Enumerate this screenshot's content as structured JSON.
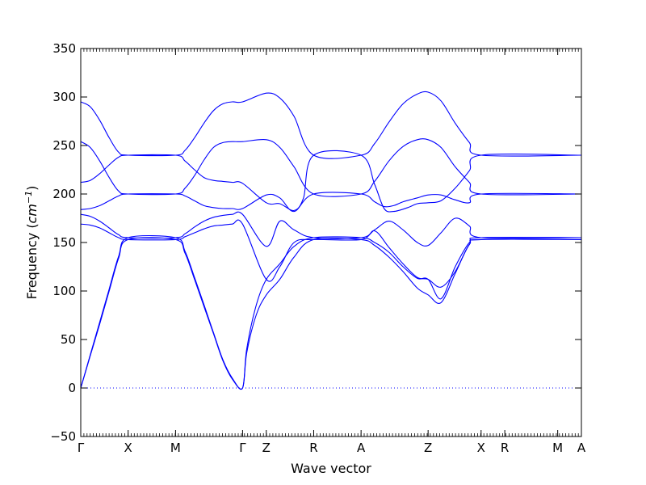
{
  "chart_data": {
    "type": "line",
    "title": "",
    "xlabel": "Wave vector",
    "ylabel_prefix": "Frequency (",
    "ylabel_unit_base": "cm",
    "ylabel_unit_exp": "−1",
    "ylabel_suffix": ")",
    "ylim": [
      -50,
      350
    ],
    "yticks": [
      -50,
      0,
      50,
      100,
      150,
      200,
      250,
      300,
      350
    ],
    "ytick_labels": [
      "−50",
      "0",
      "50",
      "100",
      "150",
      "200",
      "250",
      "300",
      "350"
    ],
    "grid": false,
    "line_color": "#0000ff",
    "zero_line": {
      "y": 0,
      "style": "dotted",
      "color": "#0000ff"
    },
    "high_symmetry_points": [
      {
        "label": "Γ",
        "x": 0
      },
      {
        "label": "X",
        "x": 0.5
      },
      {
        "label": "M",
        "x": 1.0
      },
      {
        "label": "Γ",
        "x": 1.707
      },
      {
        "label": "Z",
        "x": 1.957
      },
      {
        "label": "R",
        "x": 2.457
      },
      {
        "label": "A",
        "x": 2.957
      },
      {
        "label": "Z",
        "x": 3.664
      },
      {
        "label": "X",
        "x": 4.223
      },
      {
        "label": "R",
        "x": 4.473
      },
      {
        "label": "M",
        "x": 5.031
      },
      {
        "label": "A",
        "x": 5.281
      }
    ],
    "xlim": [
      0,
      5.281
    ],
    "series": [
      {
        "x": [
          0,
          0.1,
          0.2,
          0.3,
          0.4,
          0.5,
          1.0,
          1.1,
          1.2,
          1.3,
          1.4,
          1.5,
          1.6,
          1.707,
          1.957,
          2.1,
          2.25,
          2.457,
          2.957,
          3.1,
          3.25,
          3.4,
          3.55,
          3.664,
          3.8,
          3.95,
          4.1,
          4.223,
          5.281
        ],
        "y": [
          295,
          290,
          276,
          258,
          243,
          240,
          240,
          245,
          258,
          273,
          286,
          293,
          295,
          295,
          304,
          299,
          280,
          240,
          240,
          252,
          274,
          293,
          303,
          305,
          296,
          273,
          253,
          240,
          240
        ]
      },
      {
        "x": [
          0,
          0.1,
          0.2,
          0.3,
          0.4,
          0.5,
          1.0,
          1.1,
          1.2,
          1.3,
          1.4,
          1.5,
          1.6,
          1.707,
          1.957,
          2.1,
          2.25,
          2.457,
          2.957,
          3.1,
          3.25,
          3.4,
          3.55,
          3.664,
          3.8,
          3.95,
          4.1,
          4.223,
          5.281
        ],
        "y": [
          254,
          248,
          234,
          217,
          203,
          200,
          200,
          206,
          219,
          235,
          248,
          253,
          254,
          254,
          256,
          248,
          228,
          200,
          200,
          213,
          234,
          249,
          256,
          256,
          248,
          228,
          212,
          200,
          200
        ]
      },
      {
        "x": [
          0,
          0.1,
          0.2,
          0.3,
          0.4,
          0.5,
          1.0,
          1.1,
          1.2,
          1.3,
          1.4,
          1.5,
          1.6,
          1.707,
          1.957,
          2.1,
          2.25,
          2.35,
          2.457,
          2.957,
          3.1,
          3.2,
          3.3,
          3.45,
          3.55,
          3.664,
          3.8,
          3.95,
          4.1,
          4.223,
          5.281
        ],
        "y": [
          212,
          214,
          221,
          230,
          238,
          240,
          240,
          234,
          225,
          217,
          214,
          213,
          212,
          211,
          191,
          190,
          183,
          196,
          240,
          240,
          210,
          185,
          182,
          186,
          190,
          191,
          193,
          206,
          224,
          240,
          240
        ]
      },
      {
        "x": [
          0,
          0.1,
          0.2,
          0.3,
          0.4,
          0.5,
          1.0,
          1.1,
          1.2,
          1.3,
          1.4,
          1.5,
          1.6,
          1.707,
          1.957,
          2.1,
          2.25,
          2.457,
          2.957,
          3.1,
          3.2,
          3.3,
          3.4,
          3.55,
          3.664,
          3.8,
          3.95,
          4.1,
          4.223,
          5.281
        ],
        "y": [
          184,
          185,
          188,
          193,
          198,
          200,
          200,
          198,
          193,
          188,
          186,
          185,
          185,
          185,
          199,
          196,
          182,
          200,
          200,
          192,
          187,
          188,
          192,
          196,
          199,
          199,
          194,
          191,
          200,
          200
        ]
      },
      {
        "x": [
          0,
          0.1,
          0.2,
          0.3,
          0.4,
          0.5,
          1.0,
          1.1,
          1.2,
          1.3,
          1.4,
          1.5,
          1.6,
          1.707,
          1.957,
          2.1,
          2.25,
          2.457,
          2.957,
          3.1,
          3.25,
          3.4,
          3.55,
          3.664,
          3.8,
          3.95,
          4.1,
          4.223,
          5.281
        ],
        "y": [
          179,
          177,
          172,
          165,
          158,
          155,
          155,
          159,
          166,
          172,
          176,
          178,
          179,
          179,
          146,
          172,
          163,
          155,
          155,
          163,
          172,
          163,
          150,
          147,
          160,
          175,
          167,
          155,
          155
        ]
      },
      {
        "x": [
          0,
          0.1,
          0.2,
          0.3,
          0.4,
          0.5,
          1.0,
          1.1,
          1.2,
          1.3,
          1.4,
          1.5,
          1.6,
          1.707,
          1.957,
          2.1,
          2.25,
          2.457,
          2.957,
          3.1,
          3.25,
          3.4,
          3.55,
          3.664,
          3.8,
          3.95,
          4.1,
          4.223,
          5.281
        ],
        "y": [
          169,
          168,
          165,
          160,
          155,
          153,
          153,
          156,
          160,
          164,
          167,
          168,
          169,
          169,
          112,
          125,
          150,
          153,
          153,
          162,
          145,
          128,
          114,
          112,
          104,
          120,
          148,
          153,
          153
        ]
      },
      {
        "x": [
          0,
          0.1,
          0.2,
          0.3,
          0.4,
          0.5,
          1.0,
          1.1,
          1.2,
          1.3,
          1.4,
          1.5,
          1.6,
          1.707,
          1.75,
          1.85,
          1.957,
          2.1,
          2.25,
          2.457,
          2.957,
          3.1,
          3.25,
          3.4,
          3.55,
          3.664,
          3.8,
          3.95,
          4.1,
          4.223,
          5.281
        ],
        "y": [
          0,
          34,
          68,
          102,
          136,
          155,
          155,
          141,
          114,
          86,
          57,
          29,
          10,
          0,
          40,
          85,
          112,
          128,
          146,
          155,
          155,
          150,
          140,
          125,
          113,
          112,
          92,
          125,
          150,
          155,
          155
        ]
      },
      {
        "x": [
          0,
          0.1,
          0.2,
          0.3,
          0.4,
          0.5,
          1.0,
          1.1,
          1.2,
          1.3,
          1.4,
          1.5,
          1.6,
          1.707,
          1.75,
          1.85,
          1.957,
          2.1,
          2.25,
          2.457,
          2.957,
          3.1,
          3.25,
          3.4,
          3.55,
          3.664,
          3.8,
          3.95,
          4.1,
          4.223,
          5.281
        ],
        "y": [
          0,
          33,
          66,
          100,
          134,
          153,
          153,
          139,
          112,
          84,
          56,
          28,
          9,
          0,
          36,
          75,
          96,
          112,
          135,
          153,
          153,
          147,
          135,
          120,
          103,
          96,
          88,
          118,
          148,
          153,
          153
        ]
      }
    ]
  }
}
